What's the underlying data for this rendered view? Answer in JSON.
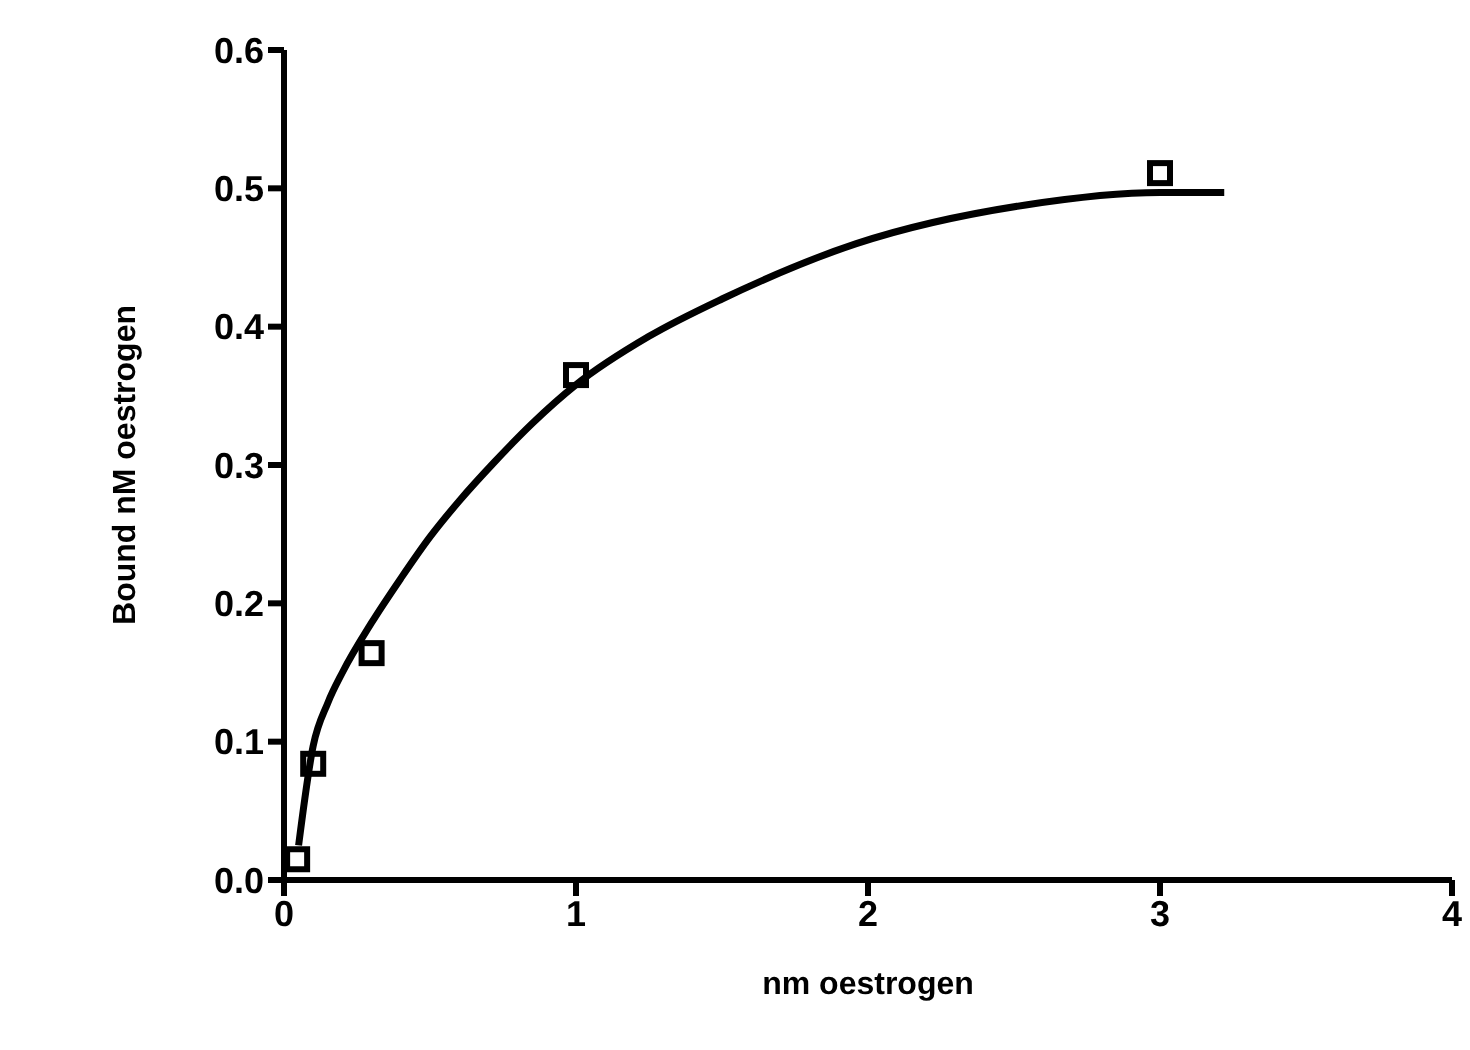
{
  "chart_data": {
    "type": "scatter",
    "xlabel": "nm oestrogen",
    "ylabel": "Bound nM oestrogen",
    "xlim": [
      0,
      4
    ],
    "xticks": [
      0,
      1,
      2,
      3,
      4
    ],
    "ylim": [
      0,
      0.6
    ],
    "yticks": [
      {
        "value": 0,
        "label": "0.0"
      },
      0.1,
      0.2,
      0.3,
      0.4,
      0.5,
      0.6
    ],
    "grid": false,
    "legend": false,
    "series": [
      {
        "color": "#000000",
        "marker": "square",
        "x": [
          0.045,
          0.1,
          0.3,
          1.0,
          3.0
        ],
        "values": [
          0.015,
          0.084,
          0.164,
          0.365,
          0.511
        ]
      },
      {
        "type": "line",
        "color": "#000000",
        "marker": "none",
        "line_style": "solid",
        "x": [
          0.05,
          0.1,
          0.15,
          0.2,
          0.3,
          0.4,
          0.5,
          0.6,
          0.72,
          0.85,
          1.0,
          1.25,
          1.5,
          1.96,
          2.54,
          3.0,
          3.22
        ],
        "values": [
          0.025,
          0.097,
          0.128,
          0.15,
          0.186,
          0.218,
          0.248,
          0.274,
          0.302,
          0.33,
          0.358,
          0.393,
          0.42,
          0.46,
          0.488,
          0.497,
          0.497
        ]
      }
    ]
  }
}
